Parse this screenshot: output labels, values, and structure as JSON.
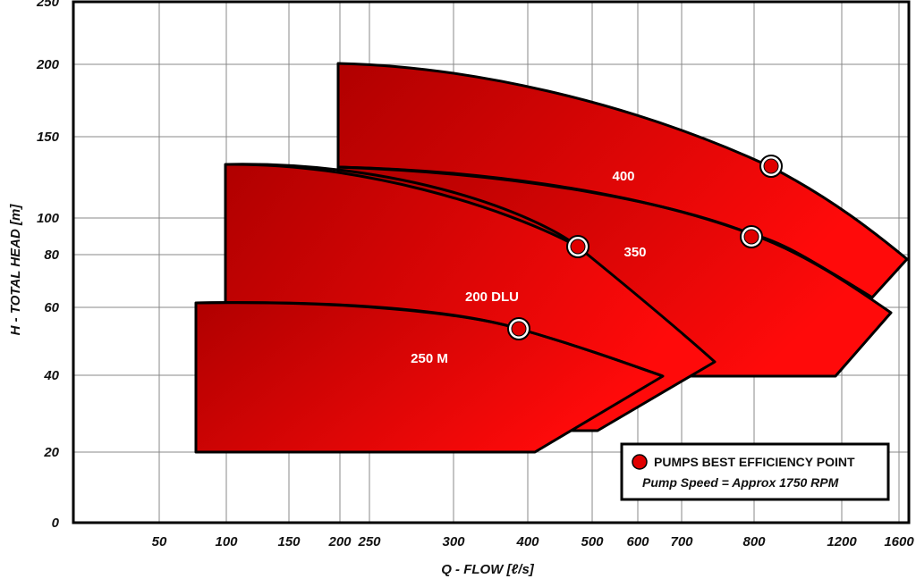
{
  "chart_data": {
    "type": "area",
    "x_scale": "log",
    "y_scale": "piecewise",
    "xlabel": "Q - FLOW [ℓ/s]",
    "ylabel": "H - TOTAL HEAD [m]",
    "x_ticks": [
      50,
      100,
      150,
      200,
      250,
      300,
      400,
      500,
      600,
      700,
      800,
      1200,
      1600
    ],
    "y_ticks": [
      0,
      20,
      40,
      60,
      80,
      100,
      150,
      200,
      250
    ],
    "grid": true,
    "colors": {
      "fill_dark": "#b00000",
      "fill_light": "#ff0a0a",
      "outline": "#000000",
      "grid": "#888888",
      "marker_fill": "#e00000"
    },
    "regions": [
      {
        "name": "400",
        "polygon": [
          [
            200,
            202
          ],
          [
            200,
            136
          ],
          [
            1600,
            80
          ],
          [
            1600,
            80
          ],
          [
            1300,
            65
          ],
          [
            1200,
            66
          ],
          [
            1000,
            110
          ],
          [
            800,
            140
          ],
          [
            500,
            182
          ],
          [
            250,
            201
          ]
        ],
        "curve": [
          [
            200,
            136
          ],
          [
            500,
            128
          ],
          [
            800,
            95
          ],
          [
            1200,
            66
          ]
        ],
        "bep": [
          830,
          136
        ],
        "label_pos": [
          560,
          121
        ]
      },
      {
        "name": "350",
        "polygon": [
          [
            200,
            137
          ],
          [
            400,
            129
          ],
          [
            600,
            113
          ],
          [
            800,
            95
          ],
          [
            1100,
            70
          ],
          [
            1500,
            58
          ],
          [
            1200,
            40
          ],
          [
            700,
            40
          ],
          [
            700,
            40
          ],
          [
            600,
            40
          ]
        ],
        "curve": [
          [
            200,
            137
          ],
          [
            480,
            126
          ],
          [
            800,
            95
          ],
          [
            1200,
            66
          ]
        ],
        "bep": [
          770,
          90
        ],
        "label_pos": [
          620,
          84
        ]
      },
      {
        "name": "200 DLU",
        "polygon": [
          [
            110,
            131
          ],
          [
            250,
            130
          ],
          [
            400,
            107
          ],
          [
            480,
            88
          ],
          [
            650,
            44
          ],
          [
            720,
            42
          ],
          [
            500,
            26
          ],
          [
            430,
            26
          ],
          [
            110,
            26
          ]
        ],
        "curve": [
          [
            180,
            130
          ],
          [
            330,
            120
          ],
          [
            480,
            88
          ],
          [
            720,
            42
          ]
        ],
        "bep": [
          490,
          84
        ],
        "label_pos": [
          400,
          64
        ]
      },
      {
        "name": "250 M",
        "polygon": [
          [
            90,
            61
          ],
          [
            250,
            61
          ],
          [
            320,
            58
          ],
          [
            380,
            54
          ],
          [
            500,
            45
          ],
          [
            640,
            40
          ],
          [
            400,
            20
          ],
          [
            90,
            20
          ]
        ],
        "curve": [
          [
            120,
            61
          ],
          [
            280,
            58
          ],
          [
            380,
            54
          ],
          [
            640,
            40
          ]
        ],
        "bep": [
          370,
          53
        ],
        "label_pos": [
          300,
          45
        ]
      }
    ]
  },
  "legend": {
    "title": "PUMPS BEST EFFICIENCY POINT",
    "subtitle": "Pump Speed =  Approx  1750 RPM"
  }
}
